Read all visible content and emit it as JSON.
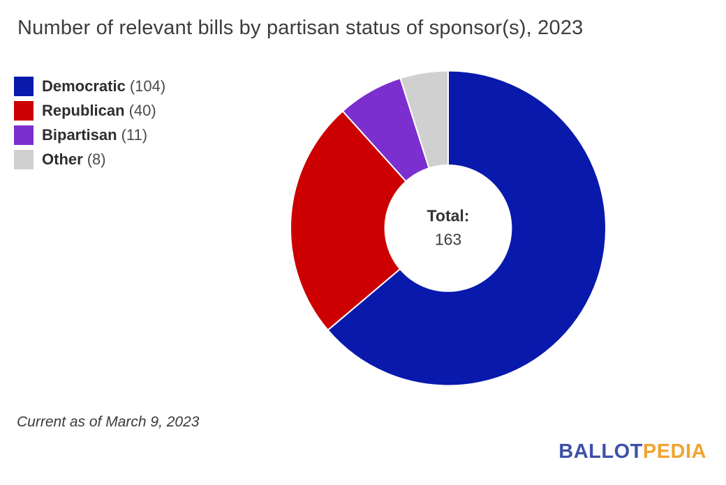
{
  "title": "Number of relevant bills by partisan status of sponsor(s), 2023",
  "footnote": "Current as of March 9, 2023",
  "center_label": {
    "heading": "Total:",
    "value": "163"
  },
  "legend": {
    "items": [
      {
        "label": "Democratic",
        "count": "(104)",
        "color": "#0819AC"
      },
      {
        "label": "Republican",
        "count": "(40)",
        "color": "#CC0000"
      },
      {
        "label": "Bipartisan",
        "count": "(11)",
        "color": "#7B2FCE"
      },
      {
        "label": "Other",
        "count": "(8)",
        "color": "#D0D0D0"
      }
    ]
  },
  "logo": {
    "first": "BALLOT",
    "second": "PEDIA",
    "first_color": "#3D51A8",
    "second_color": "#F0A433"
  },
  "chart_data": {
    "type": "pie",
    "donut": true,
    "title": "Number of relevant bills by partisan status of sponsor(s), 2023",
    "categories": [
      "Democratic",
      "Republican",
      "Bipartisan",
      "Other"
    ],
    "values": [
      104,
      40,
      11,
      8
    ],
    "colors": [
      "#0819AC",
      "#CC0000",
      "#7B2FCE",
      "#D0D0D0"
    ],
    "total": 163,
    "center_text": "Total: 163",
    "legend_position": "top-left",
    "start_angle_deg": 0,
    "direction": "clockwise",
    "hole_ratio": 0.4,
    "annotation": "Current as of March 9, 2023"
  }
}
